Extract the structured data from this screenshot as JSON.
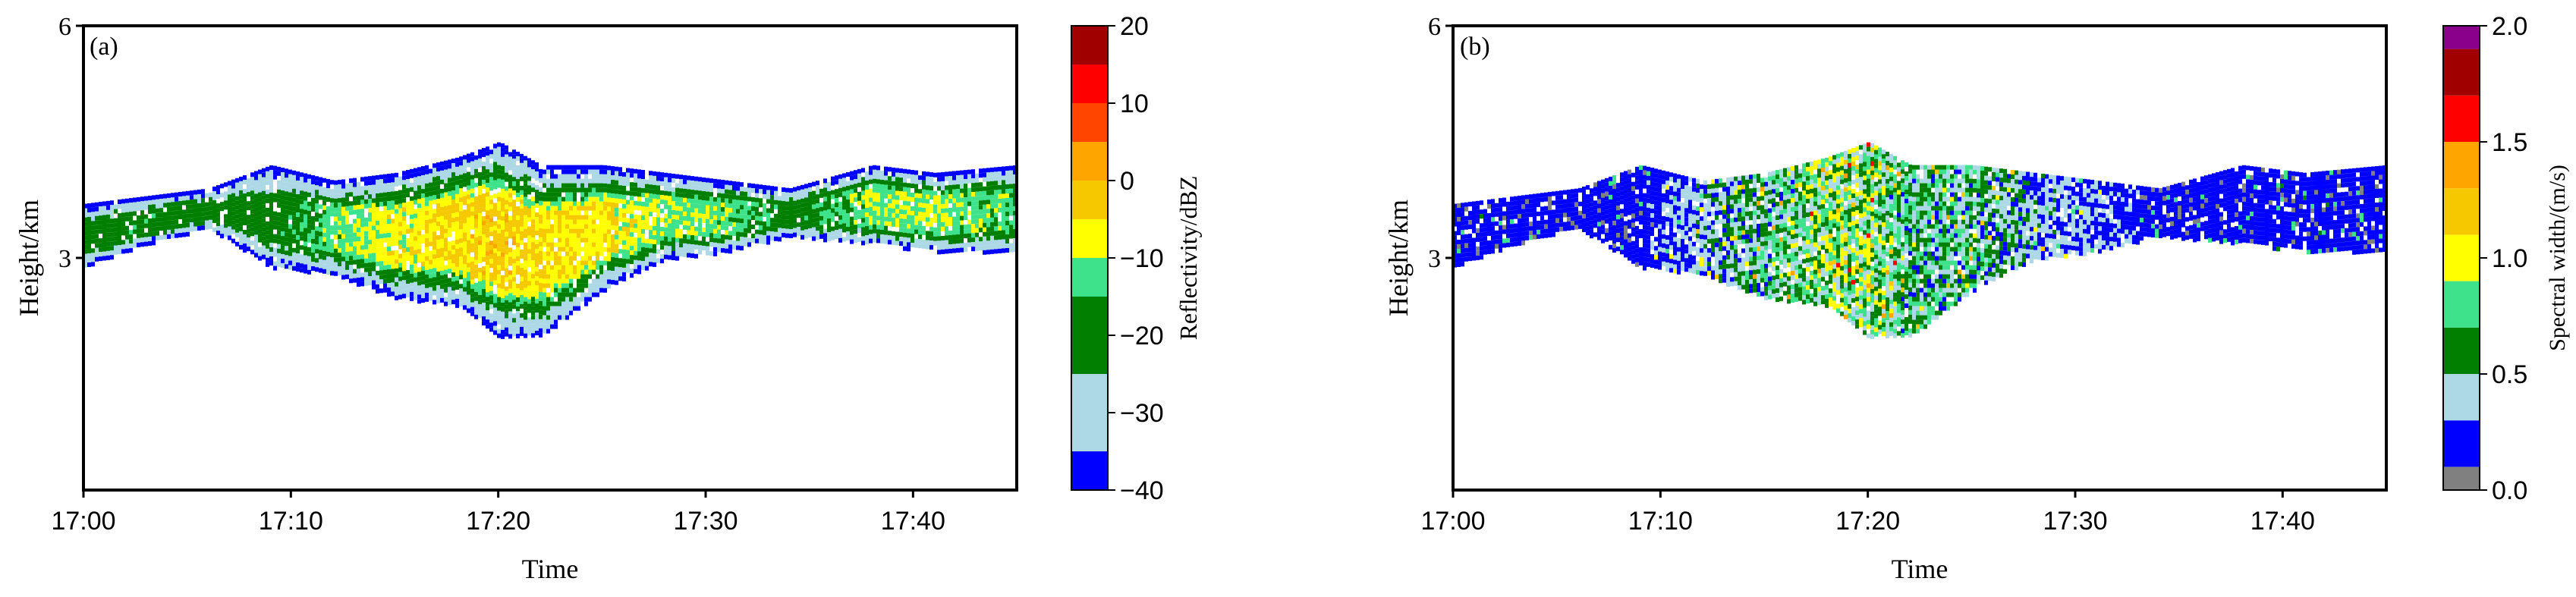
{
  "chart_data": [
    {
      "type": "heatmap",
      "panel_label": "(a)",
      "xlabel": "Time",
      "ylabel": "Height/km",
      "x_ticks": [
        "17:00",
        "17:10",
        "17:20",
        "17:30",
        "17:40"
      ],
      "x_tick_minutes": [
        0,
        10,
        20,
        30,
        40
      ],
      "xlim_minutes": [
        0,
        45
      ],
      "y_ticks": [
        "3",
        "6"
      ],
      "y_tick_values": [
        3,
        6
      ],
      "ylim": [
        0,
        6
      ],
      "grid": false,
      "colorbar": {
        "label": "Reflectivity/dBZ",
        "ticks": [
          "20",
          "10",
          "0",
          "−10",
          "−20",
          "−30",
          "−40"
        ],
        "tick_values": [
          20,
          10,
          0,
          -10,
          -20,
          -30,
          -40
        ],
        "range": [
          -40,
          20
        ],
        "bins": [
          {
            "min": -40,
            "max": -35,
            "color": "#0000ff"
          },
          {
            "min": -35,
            "max": -25,
            "color": "#add8e6"
          },
          {
            "min": -25,
            "max": -15,
            "color": "#007f00"
          },
          {
            "min": -15,
            "max": -10,
            "color": "#3ee28a"
          },
          {
            "min": -10,
            "max": -5,
            "color": "#ffff00"
          },
          {
            "min": -5,
            "max": 0,
            "color": "#f5c800"
          },
          {
            "min": 0,
            "max": 5,
            "color": "#ffa500"
          },
          {
            "min": 5,
            "max": 10,
            "color": "#ff4500"
          },
          {
            "min": 10,
            "max": 15,
            "color": "#ff0000"
          },
          {
            "min": 15,
            "max": 20,
            "color": "#a00000"
          }
        ]
      },
      "echo_profile": [
        {
          "t": 0.0,
          "bottom": 2.9,
          "top": 3.7,
          "value": -20
        },
        {
          "t": 3.0,
          "bottom": 3.2,
          "top": 3.8,
          "value": -18
        },
        {
          "t": 6.0,
          "bottom": 3.4,
          "top": 3.9,
          "value": -20
        },
        {
          "t": 9.0,
          "bottom": 2.9,
          "top": 4.2,
          "value": -20
        },
        {
          "t": 12.0,
          "bottom": 2.8,
          "top": 4.0,
          "value": -12
        },
        {
          "t": 15.0,
          "bottom": 2.5,
          "top": 4.1,
          "value": -8
        },
        {
          "t": 18.0,
          "bottom": 2.4,
          "top": 4.3,
          "value": -4
        },
        {
          "t": 20.0,
          "bottom": 2.0,
          "top": 4.5,
          "value": -3
        },
        {
          "t": 22.0,
          "bottom": 2.0,
          "top": 4.2,
          "value": -5
        },
        {
          "t": 25.0,
          "bottom": 2.6,
          "top": 4.2,
          "value": -6
        },
        {
          "t": 28.0,
          "bottom": 3.0,
          "top": 4.1,
          "value": -10
        },
        {
          "t": 31.0,
          "bottom": 3.1,
          "top": 4.0,
          "value": -12
        },
        {
          "t": 34.0,
          "bottom": 3.3,
          "top": 3.9,
          "value": -20
        },
        {
          "t": 38.0,
          "bottom": 3.2,
          "top": 4.2,
          "value": -10
        },
        {
          "t": 41.0,
          "bottom": 3.1,
          "top": 4.1,
          "value": -10
        },
        {
          "t": 45.0,
          "bottom": 3.1,
          "top": 4.2,
          "value": -14
        }
      ]
    },
    {
      "type": "heatmap",
      "panel_label": "(b)",
      "xlabel": "Time",
      "ylabel": "Height/km",
      "x_ticks": [
        "17:00",
        "17:10",
        "17:20",
        "17:30",
        "17:40"
      ],
      "x_tick_minutes": [
        0,
        10,
        20,
        30,
        40
      ],
      "xlim_minutes": [
        0,
        45
      ],
      "y_ticks": [
        "3",
        "6"
      ],
      "y_tick_values": [
        3,
        6
      ],
      "ylim": [
        0,
        6
      ],
      "grid": false,
      "colorbar": {
        "label": "Spectral width/(m/s)",
        "ticks": [
          "2.0",
          "1.5",
          "1.0",
          "0.5",
          "0.0"
        ],
        "tick_values": [
          2.0,
          1.5,
          1.0,
          0.5,
          0.0
        ],
        "range": [
          0,
          2
        ],
        "bins": [
          {
            "min": 0.0,
            "max": 0.1,
            "color": "#808080"
          },
          {
            "min": 0.1,
            "max": 0.3,
            "color": "#0000ff"
          },
          {
            "min": 0.3,
            "max": 0.5,
            "color": "#add8e6"
          },
          {
            "min": 0.5,
            "max": 0.7,
            "color": "#007f00"
          },
          {
            "min": 0.7,
            "max": 0.9,
            "color": "#3ee28a"
          },
          {
            "min": 0.9,
            "max": 1.1,
            "color": "#ffff00"
          },
          {
            "min": 1.1,
            "max": 1.3,
            "color": "#f5c800"
          },
          {
            "min": 1.3,
            "max": 1.5,
            "color": "#ffa500"
          },
          {
            "min": 1.5,
            "max": 1.7,
            "color": "#ff0000"
          },
          {
            "min": 1.7,
            "max": 1.9,
            "color": "#a00000"
          },
          {
            "min": 1.9,
            "max": 2.0,
            "color": "#8b008b"
          }
        ]
      },
      "echo_profile": [
        {
          "t": 0.0,
          "bottom": 2.9,
          "top": 3.7,
          "value": 0.2
        },
        {
          "t": 3.0,
          "bottom": 3.2,
          "top": 3.8,
          "value": 0.2
        },
        {
          "t": 6.0,
          "bottom": 3.4,
          "top": 3.9,
          "value": 0.2
        },
        {
          "t": 9.0,
          "bottom": 2.9,
          "top": 4.2,
          "value": 0.2
        },
        {
          "t": 12.0,
          "bottom": 2.8,
          "top": 4.0,
          "value": 0.4
        },
        {
          "t": 15.0,
          "bottom": 2.5,
          "top": 4.1,
          "value": 0.6
        },
        {
          "t": 18.0,
          "bottom": 2.4,
          "top": 4.3,
          "value": 0.8
        },
        {
          "t": 20.0,
          "bottom": 2.0,
          "top": 4.5,
          "value": 0.8
        },
        {
          "t": 22.0,
          "bottom": 2.0,
          "top": 4.2,
          "value": 0.6
        },
        {
          "t": 25.0,
          "bottom": 2.6,
          "top": 4.2,
          "value": 0.6
        },
        {
          "t": 28.0,
          "bottom": 3.0,
          "top": 4.1,
          "value": 0.4
        },
        {
          "t": 31.0,
          "bottom": 3.1,
          "top": 4.0,
          "value": 0.3
        },
        {
          "t": 34.0,
          "bottom": 3.3,
          "top": 3.9,
          "value": 0.2
        },
        {
          "t": 38.0,
          "bottom": 3.2,
          "top": 4.2,
          "value": 0.2
        },
        {
          "t": 41.0,
          "bottom": 3.1,
          "top": 4.1,
          "value": 0.2
        },
        {
          "t": 45.0,
          "bottom": 3.1,
          "top": 4.2,
          "value": 0.2
        }
      ]
    }
  ]
}
